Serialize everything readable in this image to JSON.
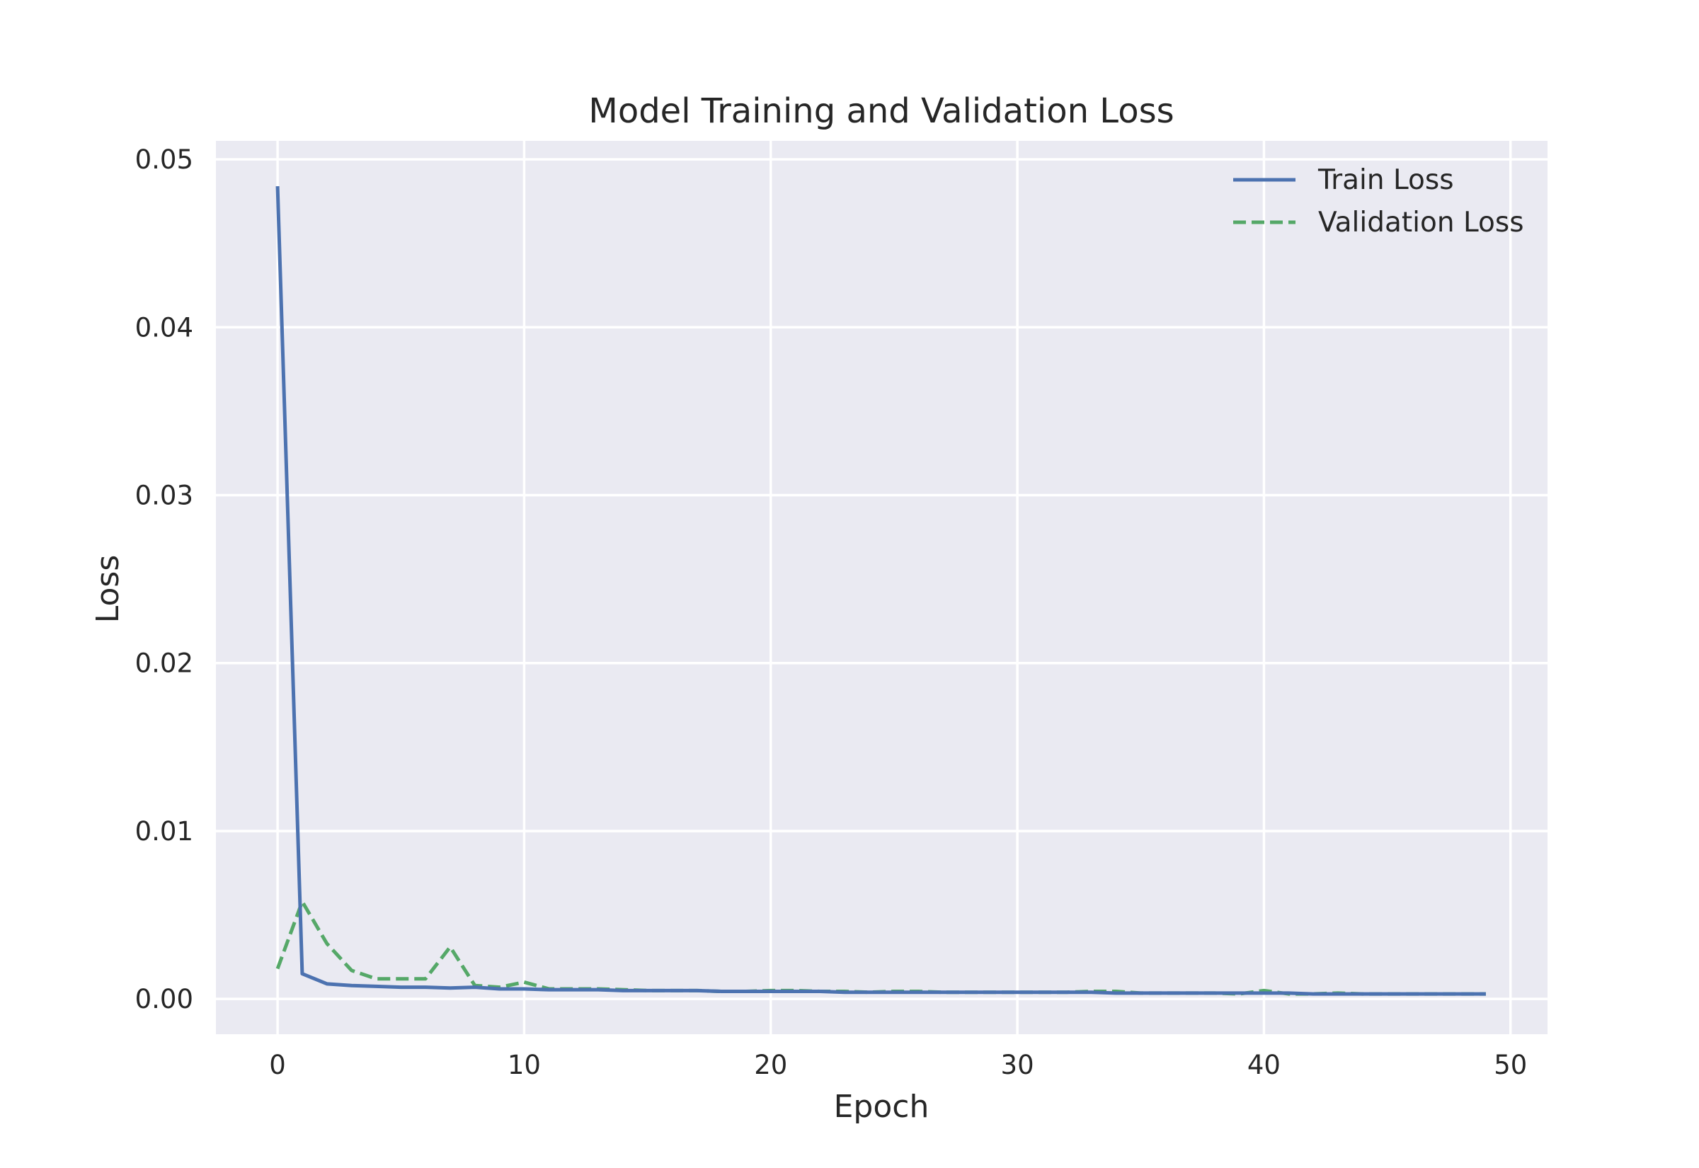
{
  "chart_data": {
    "type": "line",
    "title": "Model Training and Validation Loss",
    "xlabel": "Epoch",
    "ylabel": "Loss",
    "xlim": [
      -2.5,
      51.5
    ],
    "ylim": [
      -0.0021,
      0.0511
    ],
    "xticks": [
      0,
      10,
      20,
      30,
      40,
      50
    ],
    "xtick_labels": [
      "0",
      "10",
      "20",
      "30",
      "40",
      "50"
    ],
    "yticks": [
      0.0,
      0.01,
      0.02,
      0.03,
      0.04,
      0.05
    ],
    "ytick_labels": [
      "0.00",
      "0.01",
      "0.02",
      "0.03",
      "0.04",
      "0.05"
    ],
    "grid": true,
    "legend_position": "top-right",
    "colors": {
      "background": "#eaeaf2",
      "train": "#4c72b0",
      "validation": "#55a868"
    },
    "x": [
      0,
      1,
      2,
      3,
      4,
      5,
      6,
      7,
      8,
      9,
      10,
      11,
      12,
      13,
      14,
      15,
      16,
      17,
      18,
      19,
      20,
      21,
      22,
      23,
      24,
      25,
      26,
      27,
      28,
      29,
      30,
      31,
      32,
      33,
      34,
      35,
      36,
      37,
      38,
      39,
      40,
      41,
      42,
      43,
      44,
      45,
      46,
      47,
      48,
      49
    ],
    "series": [
      {
        "name": "Train Loss",
        "style": "solid",
        "values": [
          0.0484,
          0.0015,
          0.0009,
          0.0008,
          0.00075,
          0.0007,
          0.0007,
          0.00065,
          0.0007,
          0.0006,
          0.0006,
          0.00055,
          0.00055,
          0.00055,
          0.0005,
          0.0005,
          0.0005,
          0.0005,
          0.00045,
          0.00045,
          0.00045,
          0.00045,
          0.00045,
          0.0004,
          0.0004,
          0.0004,
          0.0004,
          0.0004,
          0.0004,
          0.0004,
          0.0004,
          0.0004,
          0.0004,
          0.0004,
          0.00035,
          0.00035,
          0.00035,
          0.00035,
          0.00035,
          0.00035,
          0.00035,
          0.00035,
          0.0003,
          0.0003,
          0.0003,
          0.0003,
          0.0003,
          0.0003,
          0.0003,
          0.0003
        ]
      },
      {
        "name": "Validation Loss",
        "style": "dashed",
        "values": [
          0.0018,
          0.0058,
          0.0033,
          0.0017,
          0.0012,
          0.0012,
          0.0012,
          0.0031,
          0.0008,
          0.0007,
          0.001,
          0.0006,
          0.0006,
          0.0006,
          0.00055,
          0.0005,
          0.0005,
          0.0005,
          0.00045,
          0.00045,
          0.0005,
          0.0005,
          0.00045,
          0.00045,
          0.0004,
          0.00045,
          0.00045,
          0.0004,
          0.0004,
          0.0004,
          0.0004,
          0.0004,
          0.0004,
          0.00045,
          0.00045,
          0.00035,
          0.00035,
          0.00035,
          0.00035,
          0.0003,
          0.0005,
          0.0003,
          0.0003,
          0.00035,
          0.0003,
          0.0003,
          0.0003,
          0.0003,
          0.0003,
          0.0003
        ]
      }
    ]
  }
}
